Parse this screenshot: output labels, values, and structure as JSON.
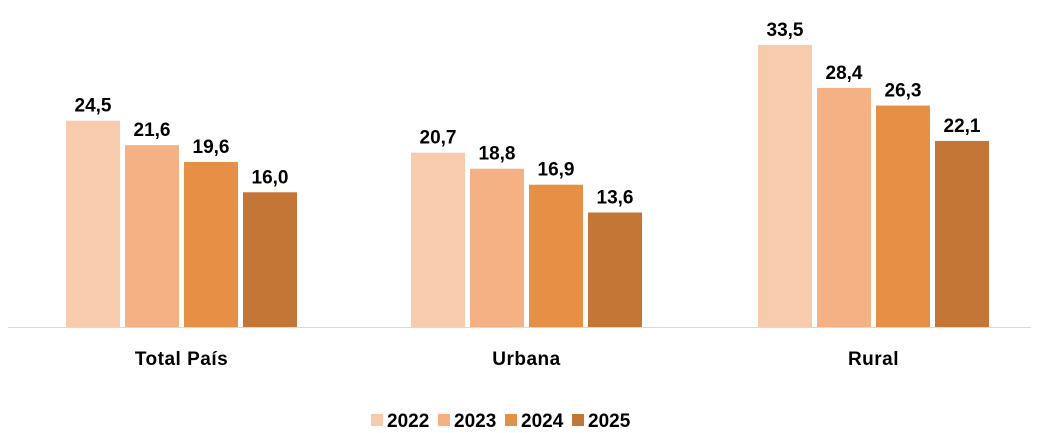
{
  "chart_data": {
    "type": "bar",
    "categories": [
      "Total País",
      "Urbana",
      "Rural"
    ],
    "series": [
      {
        "name": "2022",
        "color": "#F8CBAD",
        "values": [
          24.5,
          20.7,
          33.5
        ],
        "labels": [
          "24,5",
          "20,7",
          "33,5"
        ]
      },
      {
        "name": "2023",
        "color": "#F4B183",
        "values": [
          21.6,
          18.8,
          28.4
        ],
        "labels": [
          "21,6",
          "18,8",
          "28,4"
        ]
      },
      {
        "name": "2024",
        "color": "#E69046",
        "values": [
          19.6,
          16.9,
          26.3
        ],
        "labels": [
          "19,6",
          "16,9",
          "26,3"
        ]
      },
      {
        "name": "2025",
        "color": "#C47636",
        "values": [
          16.0,
          13.6,
          22.1
        ],
        "labels": [
          "16,0",
          "13,6",
          "22,1"
        ]
      }
    ],
    "ylim": [
      0,
      35
    ],
    "grid": false,
    "legend_position": "bottom"
  }
}
